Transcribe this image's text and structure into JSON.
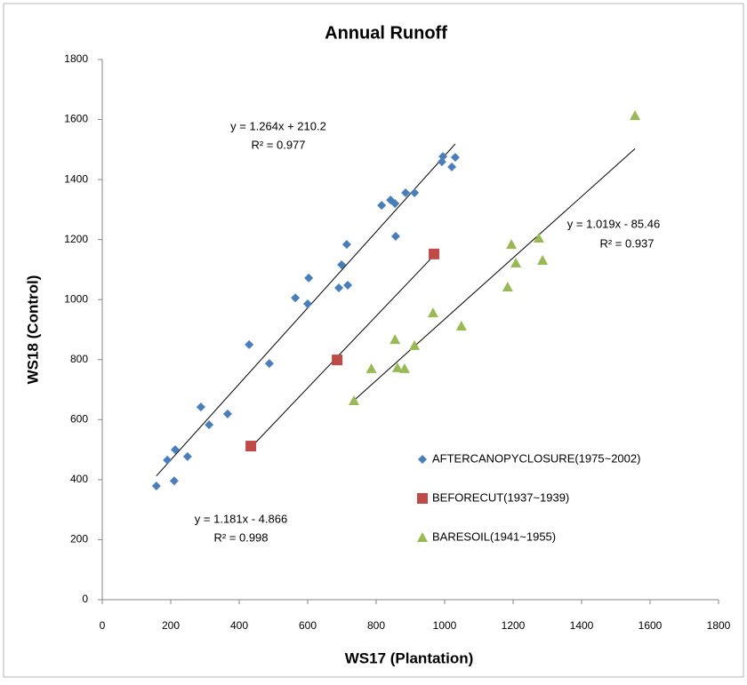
{
  "chart_data": {
    "type": "scatter",
    "title": "Annual Runoff",
    "x_label": "WS17 (Plantation)",
    "y_label": "WS18 (Control)",
    "xlim": [
      0,
      1800
    ],
    "ylim": [
      0,
      1800
    ],
    "xticks": [
      0,
      200,
      400,
      600,
      800,
      1000,
      1200,
      1400,
      1600,
      1800
    ],
    "yticks": [
      0,
      200,
      400,
      600,
      800,
      1000,
      1200,
      1400,
      1600,
      1800
    ],
    "grid": false,
    "trendline": true,
    "series": [
      {
        "name": "AFTERCANOPYCLOSURE(1975~2002)",
        "color": "#4a7ebb",
        "marker": "diamond",
        "x": [
          158,
          190,
          210,
          213,
          249,
          288,
          312,
          366,
          429,
          488,
          564,
          600,
          603,
          691,
          699,
          717,
          714,
          857,
          816,
          842,
          855,
          886,
          912,
          992,
          995,
          1021,
          1031
        ],
        "values": [
          379,
          465,
          396,
          500,
          477,
          642,
          583,
          619,
          850,
          787,
          1006,
          986,
          1072,
          1039,
          1116,
          1048,
          1184,
          1211,
          1314,
          1332,
          1320,
          1356,
          1356,
          1459,
          1477,
          1442,
          1474
        ]
      },
      {
        "name": "BEFORECUT(1937~1939)",
        "color": "#be4b48",
        "marker": "square",
        "x": [
          434,
          686,
          969
        ],
        "values": [
          512,
          799,
          1152
        ]
      },
      {
        "name": "BARESOIL(1941~1955)",
        "color": "#98b954",
        "marker": "triangle",
        "x": [
          735,
          786,
          855,
          862,
          883,
          912,
          966,
          1049,
          1184,
          1195,
          1208,
          1275,
          1286,
          1556
        ],
        "values": [
          663,
          770,
          867,
          773,
          770,
          847,
          956,
          912,
          1042,
          1184,
          1122,
          1205,
          1131,
          1613
        ]
      }
    ],
    "annotations": [
      "y = 1.264x + 210.2",
      "R² = 0.977",
      "y = 1.181x - 4.866",
      "R² = 0.998",
      "y = 1.019x - 85.46",
      "R² = 0.937"
    ]
  }
}
